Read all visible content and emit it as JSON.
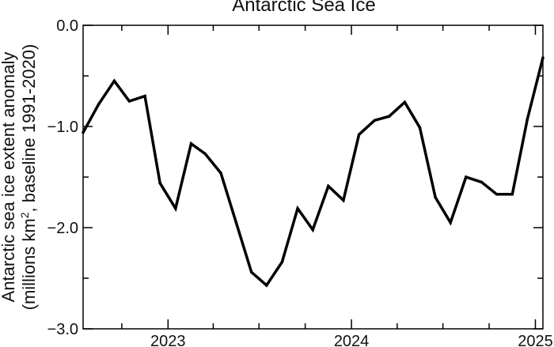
{
  "chart_data": {
    "type": "line",
    "title": "Antarctic Sea Ice",
    "ylabel_line1": "Antarctic sea ice extent anomaly",
    "ylabel_line2_prefix": "(millions km",
    "ylabel_line2_sup": "2",
    "ylabel_line2_suffix": ", baseline 1991-2020)",
    "xlabel": "",
    "ylim": [
      -3.0,
      0.0
    ],
    "yticks": [
      0.0,
      -1.0,
      -2.0,
      -3.0
    ],
    "ytick_labels": [
      "0.0",
      "−1.0",
      "−2.0",
      "−3.0"
    ],
    "xlim": [
      "2022-07-16",
      "2025-01-16"
    ],
    "xticks_labeled": [
      {
        "x": "2023-01-01",
        "label": "2023"
      },
      {
        "x": "2024-01-01",
        "label": "2024"
      },
      {
        "x": "2025-01-01",
        "label": "2025"
      }
    ],
    "xticks_minor": [
      "2022-10-01",
      "2023-04-01",
      "2023-07-01",
      "2023-10-01",
      "2024-04-01",
      "2024-07-01",
      "2024-10-01"
    ],
    "grid": false,
    "line_color": "#000000",
    "series": [
      {
        "x": [
          "2022-07-16",
          "2022-08-16",
          "2022-09-16",
          "2022-10-16",
          "2022-11-16",
          "2022-12-16",
          "2023-01-16",
          "2023-02-16",
          "2023-03-16",
          "2023-04-16",
          "2023-05-16",
          "2023-06-16",
          "2023-07-16",
          "2023-08-16",
          "2023-09-16",
          "2023-10-16",
          "2023-11-16",
          "2023-12-16",
          "2024-01-16",
          "2024-02-16",
          "2024-03-16",
          "2024-04-16",
          "2024-05-16",
          "2024-06-16",
          "2024-07-16",
          "2024-08-16",
          "2024-09-16",
          "2024-10-16",
          "2024-11-16",
          "2024-12-16",
          "2025-01-16"
        ],
        "values": [
          -1.06,
          -0.78,
          -0.55,
          -0.75,
          -0.7,
          -1.56,
          -1.81,
          -1.17,
          -1.27,
          -1.46,
          -1.94,
          -2.44,
          -2.57,
          -2.34,
          -1.81,
          -2.02,
          -1.59,
          -1.73,
          -1.08,
          -0.94,
          -0.9,
          -0.76,
          -1.01,
          -1.7,
          -1.95,
          -1.5,
          -1.55,
          -1.67,
          -1.67,
          -0.93,
          -0.32
        ]
      }
    ]
  }
}
